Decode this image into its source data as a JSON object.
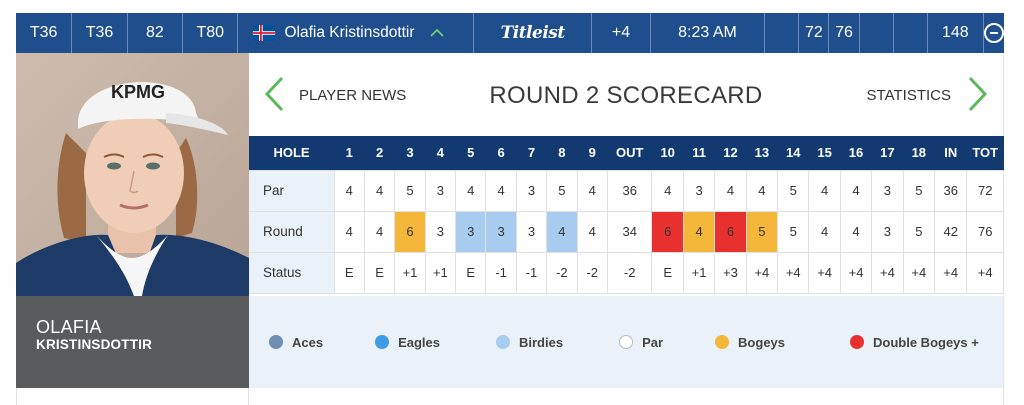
{
  "topbar": {
    "position": "T36",
    "rounds_pos": [
      "T36",
      "82",
      "T80"
    ],
    "player_name": "Olafia Kristinsdottir",
    "sponsor": "Titleist",
    "to_par": "+4",
    "tee_time": "8:23 AM",
    "round_scores": [
      "72",
      "76"
    ],
    "total": "148"
  },
  "player": {
    "first_name": "OLAFIA",
    "last_name": "KRISTINSDOTTIR",
    "cap_text": "KPMG"
  },
  "nav": {
    "left_label": "PLAYER NEWS",
    "title": "ROUND 2 SCORECARD",
    "right_label": "STATISTICS"
  },
  "scorecard": {
    "headers": [
      "HOLE",
      "1",
      "2",
      "3",
      "4",
      "5",
      "6",
      "7",
      "8",
      "9",
      "OUT",
      "10",
      "11",
      "12",
      "13",
      "14",
      "15",
      "16",
      "17",
      "18",
      "IN",
      "TOT"
    ],
    "rows": [
      {
        "label": "Par",
        "cells": [
          "4",
          "4",
          "5",
          "3",
          "4",
          "4",
          "3",
          "5",
          "4",
          "36",
          "4",
          "3",
          "4",
          "4",
          "5",
          "4",
          "4",
          "3",
          "5",
          "36",
          "72"
        ]
      },
      {
        "label": "Round",
        "cells": [
          "4",
          "4",
          "6",
          "3",
          "3",
          "3",
          "3",
          "4",
          "4",
          "34",
          "6",
          "4",
          "6",
          "5",
          "5",
          "4",
          "4",
          "3",
          "5",
          "42",
          "76"
        ]
      },
      {
        "label": "Status",
        "cells": [
          "E",
          "E",
          "+1",
          "+1",
          "E",
          "-1",
          "-1",
          "-2",
          "-2",
          "-2",
          "E",
          "+1",
          "+3",
          "+4",
          "+4",
          "+4",
          "+4",
          "+4",
          "+4",
          "+4",
          "+4"
        ]
      }
    ],
    "round_highlights": [
      "",
      "",
      "bogey",
      "",
      "birdie",
      "birdie",
      "",
      "birdie",
      "",
      "",
      "dbl",
      "bogey",
      "dbl",
      "bogey",
      "",
      "",
      "",
      "",
      "",
      "",
      ""
    ]
  },
  "legend": [
    {
      "label": "Aces",
      "color": "#6e8fb0"
    },
    {
      "label": "Eagles",
      "color": "#3d9be9"
    },
    {
      "label": "Birdies",
      "color": "#a8ccf0"
    },
    {
      "label": "Par",
      "color": "#ffffff"
    },
    {
      "label": "Bogeys",
      "color": "#f4b73a"
    },
    {
      "label": "Double Bogeys +",
      "color": "#e8312f"
    }
  ],
  "colors": {
    "topbar": "#1f4e8c",
    "table_header": "#133a70",
    "nav_arrow": "#5cb85c",
    "namebox": "#5a5b5d",
    "legend_bg": "#eaf1f9"
  }
}
